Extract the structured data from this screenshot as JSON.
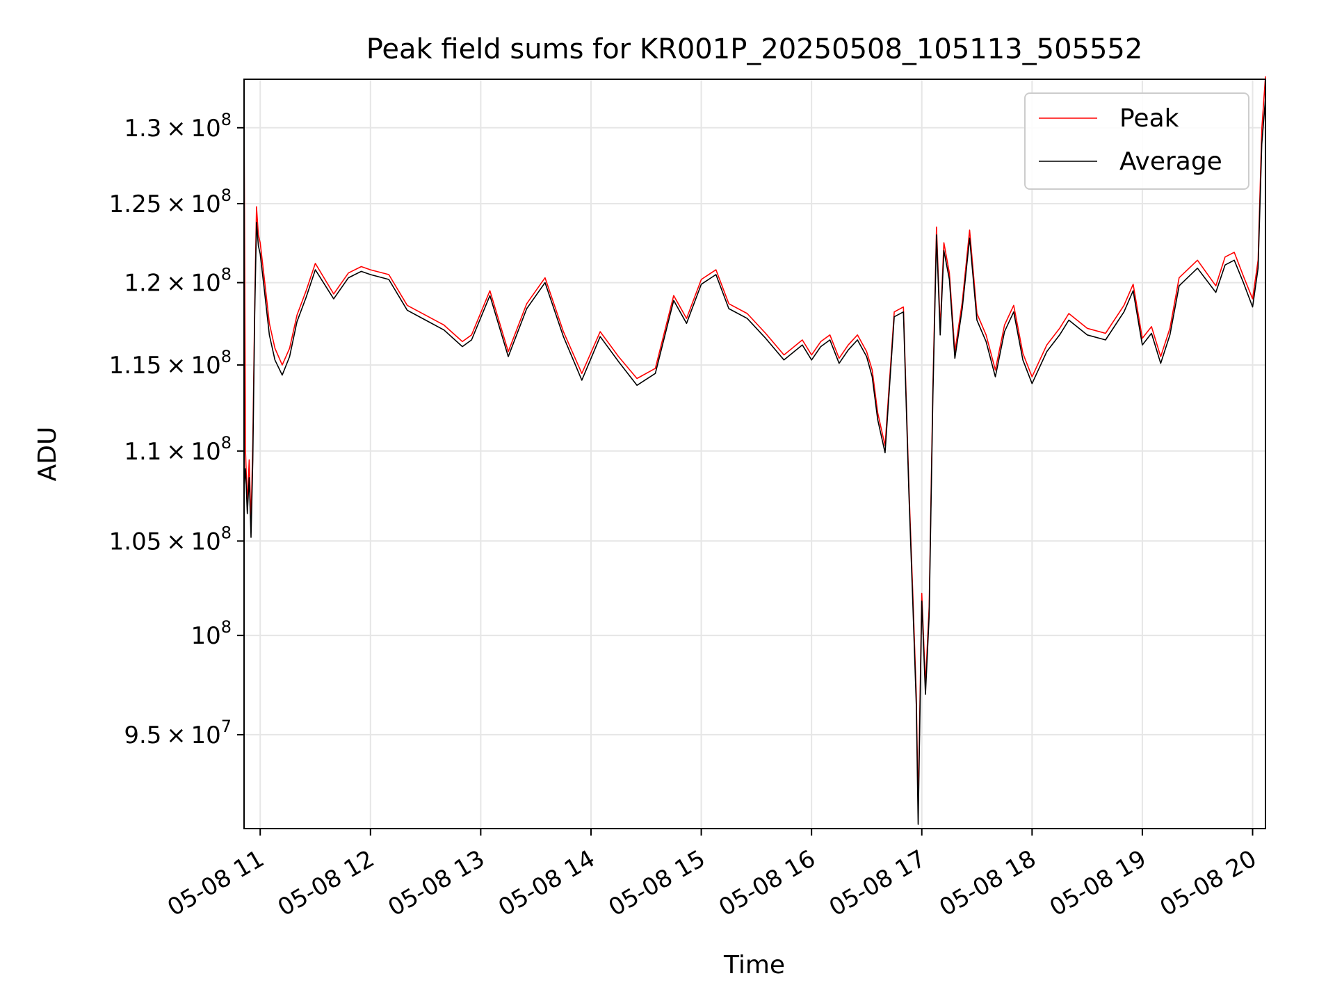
{
  "chart_data": {
    "type": "line",
    "title": "Peak field sums for KR001P_20250508_105113_505552",
    "xlabel": "Time",
    "ylabel": "ADU",
    "yscale": "log",
    "xlim": [
      "2025-05-08 10:51:13",
      "2025-05-08 20:07:00"
    ],
    "ylim": [
      90500000,
      133300000
    ],
    "grid": true,
    "legend_position": "upper right",
    "x_ticks": [
      "05-08 11",
      "05-08 12",
      "05-08 13",
      "05-08 14",
      "05-08 15",
      "05-08 16",
      "05-08 17",
      "05-08 18",
      "05-08 19",
      "05-08 20"
    ],
    "y_ticks": [
      {
        "value": 95000000,
        "mantissa": "9.5",
        "exp": "7"
      },
      {
        "value": 100000000,
        "mantissa": "",
        "exp": "8"
      },
      {
        "value": 105000000,
        "mantissa": "1.05",
        "exp": "8"
      },
      {
        "value": 110000000,
        "mantissa": "1.1",
        "exp": "8"
      },
      {
        "value": 115000000,
        "mantissa": "1.15",
        "exp": "8"
      },
      {
        "value": 120000000,
        "mantissa": "1.2",
        "exp": "8"
      },
      {
        "value": 125000000,
        "mantissa": "1.25",
        "exp": "8"
      },
      {
        "value": 130000000,
        "mantissa": "1.3",
        "exp": "8"
      }
    ],
    "series": [
      {
        "name": "Peak",
        "color": "#ff0000",
        "x": [
          "2025-05-08 10:51:13",
          "2025-05-08 10:52:00",
          "2025-05-08 10:53:00",
          "2025-05-08 10:54:00",
          "2025-05-08 10:55:00",
          "2025-05-08 10:56:00",
          "2025-05-08 10:57:00",
          "2025-05-08 10:58:00",
          "2025-05-08 10:59:00",
          "2025-05-08 11:00:00",
          "2025-05-08 11:02:00",
          "2025-05-08 11:05:00",
          "2025-05-08 11:08:00",
          "2025-05-08 11:12:00",
          "2025-05-08 11:16:00",
          "2025-05-08 11:20:00",
          "2025-05-08 11:25:00",
          "2025-05-08 11:30:00",
          "2025-05-08 11:40:00",
          "2025-05-08 11:48:00",
          "2025-05-08 11:55:00",
          "2025-05-08 12:00:00",
          "2025-05-08 12:10:00",
          "2025-05-08 12:20:00",
          "2025-05-08 12:30:00",
          "2025-05-08 12:40:00",
          "2025-05-08 12:50:00",
          "2025-05-08 12:55:00",
          "2025-05-08 13:05:00",
          "2025-05-08 13:15:00",
          "2025-05-08 13:25:00",
          "2025-05-08 13:35:00",
          "2025-05-08 13:45:00",
          "2025-05-08 13:55:00",
          "2025-05-08 14:05:00",
          "2025-05-08 14:15:00",
          "2025-05-08 14:25:00",
          "2025-05-08 14:35:00",
          "2025-05-08 14:45:00",
          "2025-05-08 14:52:00",
          "2025-05-08 15:00:00",
          "2025-05-08 15:08:00",
          "2025-05-08 15:15:00",
          "2025-05-08 15:25:00",
          "2025-05-08 15:35:00",
          "2025-05-08 15:45:00",
          "2025-05-08 15:55:00",
          "2025-05-08 16:00:00",
          "2025-05-08 16:05:00",
          "2025-05-08 16:10:00",
          "2025-05-08 16:15:00",
          "2025-05-08 16:20:00",
          "2025-05-08 16:25:00",
          "2025-05-08 16:30:00",
          "2025-05-08 16:33:00",
          "2025-05-08 16:36:00",
          "2025-05-08 16:40:00",
          "2025-05-08 16:45:00",
          "2025-05-08 16:50:00",
          "2025-05-08 16:53:00",
          "2025-05-08 16:55:00",
          "2025-05-08 16:57:00",
          "2025-05-08 16:58:00",
          "2025-05-08 17:00:00",
          "2025-05-08 17:02:00",
          "2025-05-08 17:04:00",
          "2025-05-08 17:06:00",
          "2025-05-08 17:08:00",
          "2025-05-08 17:10:00",
          "2025-05-08 17:12:00",
          "2025-05-08 17:15:00",
          "2025-05-08 17:18:00",
          "2025-05-08 17:22:00",
          "2025-05-08 17:26:00",
          "2025-05-08 17:30:00",
          "2025-05-08 17:35:00",
          "2025-05-08 17:40:00",
          "2025-05-08 17:45:00",
          "2025-05-08 17:50:00",
          "2025-05-08 17:55:00",
          "2025-05-08 18:00:00",
          "2025-05-08 18:08:00",
          "2025-05-08 18:15:00",
          "2025-05-08 18:20:00",
          "2025-05-08 18:30:00",
          "2025-05-08 18:40:00",
          "2025-05-08 18:50:00",
          "2025-05-08 18:55:00",
          "2025-05-08 19:00:00",
          "2025-05-08 19:05:00",
          "2025-05-08 19:10:00",
          "2025-05-08 19:15:00",
          "2025-05-08 19:20:00",
          "2025-05-08 19:30:00",
          "2025-05-08 19:40:00",
          "2025-05-08 19:45:00",
          "2025-05-08 19:50:00",
          "2025-05-08 19:55:00",
          "2025-05-08 20:00:00",
          "2025-05-08 20:03:00",
          "2025-05-08 20:05:00",
          "2025-05-08 20:07:00"
        ],
        "y": [
          131500000,
          110000000,
          107000000,
          109500000,
          106000000,
          110500000,
          118500000,
          124800000,
          123000000,
          122500000,
          120500000,
          117500000,
          116000000,
          115000000,
          116000000,
          118000000,
          119500000,
          121200000,
          119300000,
          120600000,
          121000000,
          120800000,
          120500000,
          118600000,
          118000000,
          117400000,
          116400000,
          116800000,
          119500000,
          115800000,
          118700000,
          120300000,
          117000000,
          114500000,
          117000000,
          115500000,
          114200000,
          114800000,
          119200000,
          117800000,
          120200000,
          120800000,
          118700000,
          118100000,
          116900000,
          115600000,
          116500000,
          115600000,
          116400000,
          116800000,
          115400000,
          116200000,
          116800000,
          115800000,
          114700000,
          112200000,
          110300000,
          118200000,
          118500000,
          108000000,
          102500000,
          97000000,
          91500000,
          102200000,
          97500000,
          101500000,
          113500000,
          123500000,
          117200000,
          122500000,
          120600000,
          115800000,
          118800000,
          123300000,
          118100000,
          116800000,
          114700000,
          117400000,
          118600000,
          115700000,
          114300000,
          116200000,
          117200000,
          118100000,
          117200000,
          116900000,
          118600000,
          119900000,
          116600000,
          117300000,
          115500000,
          117200000,
          120300000,
          121400000,
          119800000,
          121600000,
          121900000,
          120400000,
          119000000,
          121400000,
          129900000,
          133500000
        ]
      },
      {
        "name": "Average",
        "color": "#000000",
        "x": [
          "2025-05-08 10:51:13",
          "2025-05-08 10:52:00",
          "2025-05-08 10:53:00",
          "2025-05-08 10:54:00",
          "2025-05-08 10:55:00",
          "2025-05-08 10:56:00",
          "2025-05-08 10:57:00",
          "2025-05-08 10:58:00",
          "2025-05-08 10:59:00",
          "2025-05-08 11:00:00",
          "2025-05-08 11:02:00",
          "2025-05-08 11:05:00",
          "2025-05-08 11:08:00",
          "2025-05-08 11:12:00",
          "2025-05-08 11:16:00",
          "2025-05-08 11:20:00",
          "2025-05-08 11:25:00",
          "2025-05-08 11:30:00",
          "2025-05-08 11:40:00",
          "2025-05-08 11:48:00",
          "2025-05-08 11:55:00",
          "2025-05-08 12:00:00",
          "2025-05-08 12:10:00",
          "2025-05-08 12:20:00",
          "2025-05-08 12:30:00",
          "2025-05-08 12:40:00",
          "2025-05-08 12:50:00",
          "2025-05-08 12:55:00",
          "2025-05-08 13:05:00",
          "2025-05-08 13:15:00",
          "2025-05-08 13:25:00",
          "2025-05-08 13:35:00",
          "2025-05-08 13:45:00",
          "2025-05-08 13:55:00",
          "2025-05-08 14:05:00",
          "2025-05-08 14:15:00",
          "2025-05-08 14:25:00",
          "2025-05-08 14:35:00",
          "2025-05-08 14:45:00",
          "2025-05-08 14:52:00",
          "2025-05-08 15:00:00",
          "2025-05-08 15:08:00",
          "2025-05-08 15:15:00",
          "2025-05-08 15:25:00",
          "2025-05-08 15:35:00",
          "2025-05-08 15:45:00",
          "2025-05-08 15:55:00",
          "2025-05-08 16:00:00",
          "2025-05-08 16:05:00",
          "2025-05-08 16:10:00",
          "2025-05-08 16:15:00",
          "2025-05-08 16:20:00",
          "2025-05-08 16:25:00",
          "2025-05-08 16:30:00",
          "2025-05-08 16:33:00",
          "2025-05-08 16:36:00",
          "2025-05-08 16:40:00",
          "2025-05-08 16:45:00",
          "2025-05-08 16:50:00",
          "2025-05-08 16:53:00",
          "2025-05-08 16:55:00",
          "2025-05-08 16:57:00",
          "2025-05-08 16:58:00",
          "2025-05-08 17:00:00",
          "2025-05-08 17:02:00",
          "2025-05-08 17:04:00",
          "2025-05-08 17:06:00",
          "2025-05-08 17:08:00",
          "2025-05-08 17:10:00",
          "2025-05-08 17:12:00",
          "2025-05-08 17:15:00",
          "2025-05-08 17:18:00",
          "2025-05-08 17:22:00",
          "2025-05-08 17:26:00",
          "2025-05-08 17:30:00",
          "2025-05-08 17:35:00",
          "2025-05-08 17:40:00",
          "2025-05-08 17:45:00",
          "2025-05-08 17:50:00",
          "2025-05-08 17:55:00",
          "2025-05-08 18:00:00",
          "2025-05-08 18:08:00",
          "2025-05-08 18:15:00",
          "2025-05-08 18:20:00",
          "2025-05-08 18:30:00",
          "2025-05-08 18:40:00",
          "2025-05-08 18:50:00",
          "2025-05-08 18:55:00",
          "2025-05-08 19:00:00",
          "2025-05-08 19:05:00",
          "2025-05-08 19:10:00",
          "2025-05-08 19:15:00",
          "2025-05-08 19:20:00",
          "2025-05-08 19:30:00",
          "2025-05-08 19:40:00",
          "2025-05-08 19:45:00",
          "2025-05-08 19:50:00",
          "2025-05-08 19:55:00",
          "2025-05-08 20:00:00",
          "2025-05-08 20:03:00",
          "2025-05-08 20:05:00",
          "2025-05-08 20:07:00"
        ],
        "y": [
          108000000,
          109000000,
          106500000,
          108500000,
          105200000,
          109500000,
          118000000,
          123800000,
          122300000,
          121800000,
          119800000,
          116800000,
          115300000,
          114400000,
          115500000,
          117600000,
          119100000,
          120800000,
          119000000,
          120300000,
          120700000,
          120500000,
          120200000,
          118300000,
          117700000,
          117100000,
          116100000,
          116500000,
          119200000,
          115500000,
          118400000,
          120000000,
          116700000,
          114100000,
          116700000,
          115200000,
          113800000,
          114500000,
          118900000,
          117500000,
          119900000,
          120500000,
          118400000,
          117800000,
          116600000,
          115300000,
          116200000,
          115300000,
          116100000,
          116500000,
          115100000,
          115900000,
          116500000,
          115500000,
          114300000,
          111800000,
          109900000,
          117900000,
          118200000,
          107600000,
          102000000,
          96500000,
          90700000,
          101800000,
          97000000,
          101000000,
          113000000,
          123000000,
          116800000,
          122000000,
          120200000,
          115400000,
          118400000,
          122800000,
          117700000,
          116400000,
          114300000,
          117000000,
          118200000,
          115300000,
          113900000,
          115800000,
          116800000,
          117700000,
          116800000,
          116500000,
          118200000,
          119500000,
          116200000,
          116900000,
          115100000,
          116800000,
          119800000,
          120900000,
          119400000,
          121100000,
          121400000,
          120000000,
          118500000,
          120900000,
          128900000,
          132000000
        ]
      }
    ]
  }
}
